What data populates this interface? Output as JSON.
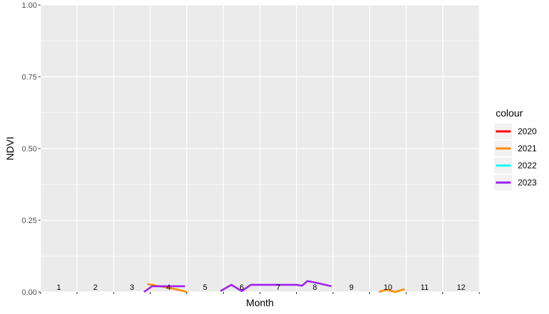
{
  "chart_data": {
    "type": "line",
    "xlabel": "Month",
    "ylabel": "NDVI",
    "xlim": [
      1,
      13
    ],
    "ylim": [
      0,
      1
    ],
    "y_ticks": [
      "0.00",
      "0.25",
      "0.50",
      "0.75",
      "1.00"
    ],
    "month_labels": [
      "1",
      "2",
      "3",
      "4",
      "5",
      "6",
      "7",
      "8",
      "9",
      "10",
      "11",
      "12"
    ],
    "grid": true,
    "legend_title": "colour",
    "legend_position": "right",
    "background_color": "#ebebeb",
    "series": [
      {
        "name": "2020",
        "color": "#ff0000",
        "segments": []
      },
      {
        "name": "2021",
        "color": "#ff8c00",
        "segments": [
          [
            [
              3.92,
              0.028
            ],
            [
              4.15,
              0.022
            ],
            [
              4.5,
              0.015
            ],
            [
              4.75,
              0.008
            ],
            [
              5.0,
              0.0
            ]
          ],
          [
            [
              10.25,
              0.0
            ],
            [
              10.45,
              0.008
            ],
            [
              10.7,
              0.0
            ],
            [
              10.95,
              0.01
            ]
          ]
        ]
      },
      {
        "name": "2022",
        "color": "#00ffff",
        "segments": []
      },
      {
        "name": "2023",
        "color": "#a020f0",
        "segments": [
          [
            [
              3.83,
              0.0
            ],
            [
              4.05,
              0.02
            ],
            [
              4.5,
              0.02
            ],
            [
              4.95,
              0.02
            ]
          ],
          [
            [
              5.92,
              0.003
            ],
            [
              6.22,
              0.025
            ],
            [
              6.5,
              0.003
            ],
            [
              6.75,
              0.025
            ],
            [
              7.0,
              0.025
            ],
            [
              7.5,
              0.025
            ],
            [
              8.0,
              0.025
            ],
            [
              8.15,
              0.022
            ],
            [
              8.3,
              0.038
            ],
            [
              8.55,
              0.032
            ],
            [
              8.95,
              0.02
            ]
          ]
        ]
      }
    ]
  }
}
